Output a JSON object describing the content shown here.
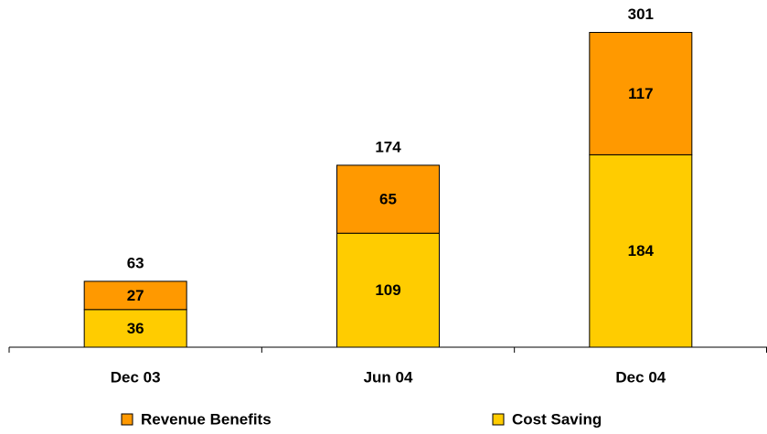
{
  "chart_data": {
    "type": "stacked_bar",
    "categories": [
      "Dec 03",
      "Jun 04",
      "Dec 04"
    ],
    "series": [
      {
        "name": "Revenue Benefits",
        "color": "#ff9900",
        "values": [
          27,
          65,
          117
        ]
      },
      {
        "name": "Cost Saving",
        "color": "#ffcc00",
        "values": [
          36,
          109,
          184
        ]
      }
    ],
    "totals": [
      63,
      174,
      301
    ],
    "ylim": [
      0,
      332
    ]
  }
}
